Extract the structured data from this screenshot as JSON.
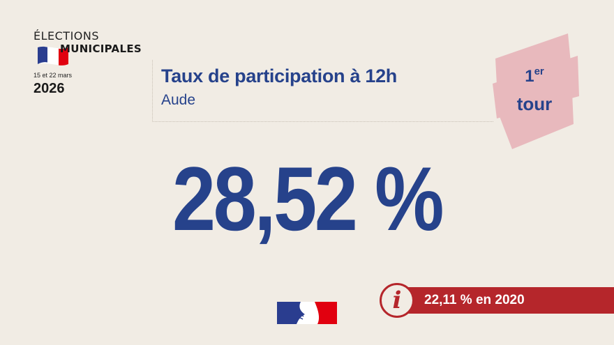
{
  "logo": {
    "line1": "ÉLECTIONS",
    "line2": "MUNICIPALES",
    "dates": "15 et 22 mars",
    "year": "2026",
    "flag_colors": [
      "#2a3d8f",
      "#ffffff",
      "#e1000f"
    ]
  },
  "header": {
    "title": "Taux de participation à 12h",
    "subtitle": "Aude"
  },
  "tour": {
    "number": "1",
    "suffix": "er",
    "label": "tour",
    "badge_color": "#e8b9bd"
  },
  "main": {
    "value": "28,52 %"
  },
  "info": {
    "icon": "info-icon",
    "text": "22,11 % en 2020",
    "color": "#b5262b"
  },
  "footer": {
    "emblem": "marianne-logo-icon"
  },
  "colors": {
    "background": "#f1ece4",
    "primary": "#26428b"
  }
}
